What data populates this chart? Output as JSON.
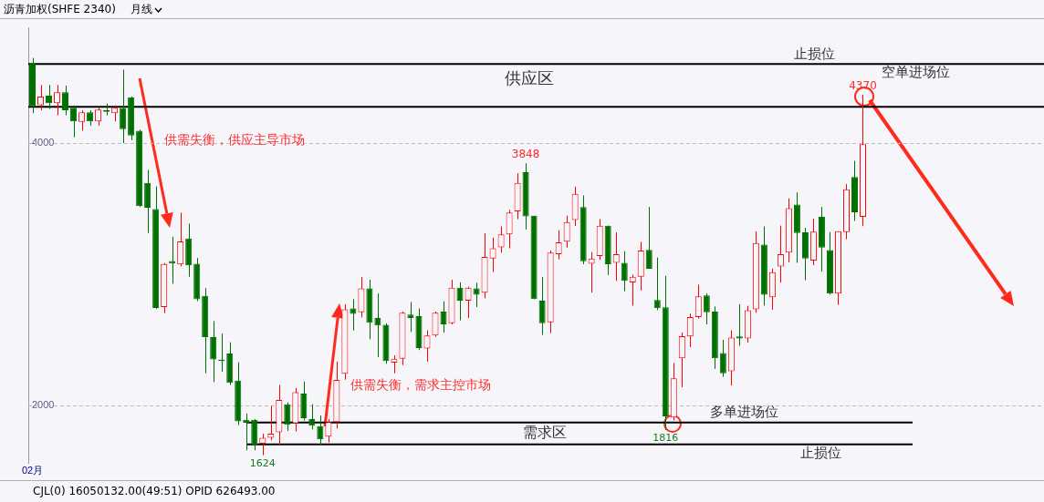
{
  "chart_data": {
    "type": "candlestick",
    "title": "沥青加权(SHFE 2340)",
    "subtitle": "月线",
    "categories": [
      "02月",
      null,
      null,
      null,
      null,
      null,
      null,
      null,
      null,
      null,
      null,
      null,
      null,
      null,
      null,
      null,
      null,
      null,
      null,
      null,
      null,
      null,
      null,
      null,
      null,
      null,
      null,
      null,
      null,
      null,
      null,
      null,
      null,
      null,
      null,
      null,
      null,
      null,
      null,
      null,
      null,
      null,
      null,
      null,
      null,
      null,
      null,
      null,
      null,
      null,
      null,
      null,
      null,
      null,
      null,
      null,
      null,
      null,
      null,
      null,
      null,
      null,
      null,
      null,
      null,
      null,
      null,
      null,
      null,
      null,
      null,
      null,
      null,
      null,
      null,
      null,
      null,
      null,
      null,
      null,
      null,
      null,
      null,
      null,
      null,
      null,
      null,
      null,
      null,
      null,
      null,
      null,
      null,
      null,
      null,
      null,
      null,
      null,
      null,
      null,
      null,
      null
    ],
    "ohlc": [
      [
        4606,
        4651,
        4230,
        4285
      ],
      [
        4290,
        4445,
        4252,
        4356
      ],
      [
        4363,
        4445,
        4263,
        4307
      ],
      [
        4307,
        4445,
        4214,
        4389
      ],
      [
        4389,
        4440,
        4214,
        4252
      ],
      [
        4272,
        4290,
        4046,
        4168
      ],
      [
        4163,
        4252,
        4097,
        4237
      ],
      [
        4237,
        4252,
        4135,
        4168
      ],
      [
        4168,
        4274,
        4135,
        4257
      ],
      [
        4252,
        4303,
        4214,
        4241
      ],
      [
        4230,
        4290,
        4168,
        4272
      ],
      [
        4270,
        4562,
        4002,
        4108
      ],
      [
        4352,
        4356,
        4024,
        4059
      ],
      [
        4097,
        4104,
        3515,
        3521
      ],
      [
        3698,
        3798,
        3317,
        3510
      ],
      [
        3499,
        3672,
        2739,
        2746
      ],
      [
        2753,
        3089,
        2706,
        3080
      ],
      [
        3103,
        3289,
        2930,
        3085
      ],
      [
        3078,
        3472,
        3063,
        3253
      ],
      [
        3275,
        3388,
        2983,
        3071
      ],
      [
        3083,
        3127,
        2797,
        2812
      ],
      [
        2837,
        2897,
        2248,
        2524
      ],
      [
        2524,
        2646,
        2181,
        2354
      ],
      [
        2352,
        2551,
        2259,
        2341
      ],
      [
        2398,
        2484,
        2159,
        2174
      ],
      [
        2192,
        2332,
        1853,
        1882
      ],
      [
        1893,
        1942,
        1661,
        1871
      ],
      [
        1893,
        1898,
        1661,
        1705
      ],
      [
        1711,
        1787,
        1624,
        1756
      ],
      [
        1756,
        2000,
        1738,
        1787
      ],
      [
        1798,
        2159,
        1705,
        2044
      ],
      [
        2011,
        2026,
        1809,
        1855
      ],
      [
        1865,
        2137,
        1805,
        2104
      ],
      [
        2093,
        2186,
        1887,
        1905
      ],
      [
        1898,
        2013,
        1820,
        1849
      ],
      [
        1845,
        1927,
        1705,
        1745
      ],
      [
        1765,
        1898,
        1721,
        1876
      ],
      [
        1876,
        2337,
        1827,
        2197
      ],
      [
        2244,
        2775,
        2199,
        2735
      ],
      [
        2742,
        2813,
        2574,
        2700
      ],
      [
        2713,
        2983,
        2673,
        2895
      ],
      [
        2895,
        2961,
        2507,
        2633
      ],
      [
        2669,
        2857,
        2370,
        2613
      ],
      [
        2618,
        2629,
        2321,
        2341
      ],
      [
        2330,
        2385,
        2248,
        2359
      ],
      [
        2359,
        2718,
        2310,
        2709
      ],
      [
        2695,
        2791,
        2563,
        2669
      ],
      [
        2684,
        2742,
        2425,
        2441
      ],
      [
        2436,
        2576,
        2337,
        2536
      ],
      [
        2536,
        2718,
        2525,
        2709
      ],
      [
        2718,
        2797,
        2558,
        2620
      ],
      [
        2629,
        2961,
        2620,
        2901
      ],
      [
        2901,
        2941,
        2651,
        2802
      ],
      [
        2802,
        2908,
        2669,
        2901
      ],
      [
        2895,
        2939,
        2753,
        2846
      ],
      [
        2862,
        3316,
        2819,
        3134
      ],
      [
        3123,
        3282,
        3019,
        3200
      ],
      [
        3207,
        3367,
        3167,
        3307
      ],
      [
        3307,
        3493,
        3200,
        3473
      ],
      [
        3482,
        3772,
        3422,
        3699
      ],
      [
        3781,
        3848,
        3344,
        3444
      ],
      [
        3449,
        3449,
        2813,
        2813
      ],
      [
        2802,
        2983,
        2540,
        2629
      ],
      [
        2636,
        3183,
        2554,
        3167
      ],
      [
        3156,
        3338,
        3116,
        3245
      ],
      [
        3251,
        3449,
        3205,
        3400
      ],
      [
        3415,
        3670,
        3371,
        3615
      ],
      [
        3515,
        3604,
        3079,
        3101
      ],
      [
        3083,
        3172,
        2862,
        3123
      ],
      [
        3141,
        3422,
        3112,
        3373
      ],
      [
        3373,
        3373,
        2997,
        3079
      ],
      [
        3090,
        3322,
        2952,
        3156
      ],
      [
        3090,
        3178,
        2873,
        2952
      ],
      [
        2941,
        3001,
        2764,
        2983
      ],
      [
        2983,
        3249,
        2879,
        3183
      ],
      [
        3189,
        3515,
        3045,
        3045
      ],
      [
        2806,
        3130,
        2729,
        2744
      ],
      [
        2751,
        2990,
        1816,
        1920
      ],
      [
        1911,
        2326,
        1889,
        2210
      ],
      [
        2363,
        2558,
        2142,
        2530
      ],
      [
        2529,
        2702,
        2447,
        2676
      ],
      [
        2676,
        2924,
        2664,
        2835
      ],
      [
        2842,
        2857,
        2620,
        2713
      ],
      [
        2718,
        2757,
        2281,
        2363
      ],
      [
        2403,
        2503,
        2221,
        2248
      ],
      [
        2264,
        2576,
        2155,
        2520
      ],
      [
        2529,
        2775,
        2458,
        2514
      ],
      [
        2514,
        2762,
        2481,
        2729
      ],
      [
        2735,
        3329,
        2709,
        3240
      ],
      [
        3229,
        3367,
        2764,
        2846
      ],
      [
        2828,
        3045,
        2731,
        3019
      ],
      [
        3061,
        3373,
        2939,
        3156
      ],
      [
        3167,
        3581,
        3094,
        3506
      ],
      [
        3533,
        3626,
        3090,
        3316
      ],
      [
        3322,
        3356,
        2957,
        3123
      ],
      [
        3107,
        3426,
        3072,
        3327
      ],
      [
        3440,
        3515,
        3023,
        3205
      ],
      [
        3187,
        3323,
        2848,
        2855
      ],
      [
        2855,
        3330,
        2769,
        3330
      ],
      [
        3323,
        3690,
        3269,
        3650
      ],
      [
        3743,
        3867,
        3409,
        3475
      ],
      [
        3440,
        4370,
        3369,
        3993
      ]
    ],
    "colors": [
      "#007000",
      "#ff0000",
      "#007000",
      "#ff0000",
      "#007000",
      "#007000",
      "#ff0000",
      "#007000",
      "#ff0000",
      "#007000",
      "#ff0000",
      "#007000",
      "#007000",
      "#007000",
      "#007000",
      "#007000",
      "#ff0000",
      "#007000",
      "#ff0000",
      "#007000",
      "#007000",
      "#007000",
      "#007000",
      "#007000",
      "#007000",
      "#007000",
      "#007000",
      "#007000",
      "#ff0000",
      "#ff0000",
      "#ff0000",
      "#007000",
      "#ff0000",
      "#007000",
      "#007000",
      "#007000",
      "#ff0000",
      "#ff0000",
      "#ff0000",
      "#007000",
      "#ff0000",
      "#007000",
      "#007000",
      "#007000",
      "#ff0000",
      "#ff0000",
      "#007000",
      "#007000",
      "#ff0000",
      "#ff0000",
      "#007000",
      "#ff0000",
      "#007000",
      "#ff0000",
      "#007000",
      "#ff0000",
      "#ff0000",
      "#ff0000",
      "#ff0000",
      "#ff0000",
      "#007000",
      "#007000",
      "#007000",
      "#ff0000",
      "#ff0000",
      "#ff0000",
      "#ff0000",
      "#007000",
      "#ff0000",
      "#ff0000",
      "#007000",
      "#ff0000",
      "#007000",
      "#ff0000",
      "#ff0000",
      "#007000",
      "#007000",
      "#007000",
      "#ff0000",
      "#ff0000",
      "#ff0000",
      "#ff0000",
      "#007000",
      "#007000",
      "#007000",
      "#ff0000",
      "#007000",
      "#ff0000",
      "#ff0000",
      "#007000",
      "#ff0000",
      "#ff0000",
      "#ff0000",
      "#007000",
      "#007000",
      "#ff0000",
      "#007000",
      "#007000",
      "#ff0000",
      "#ff0000",
      "#007000",
      "#ff0000"
    ],
    "ylim": [
      1560,
      4880
    ],
    "yticks": [
      2000,
      4000
    ],
    "grid": "y",
    "ref_lines": [
      {
        "axis": "y",
        "value": 4605,
        "label": "止损位",
        "color": "#000000"
      },
      {
        "axis": "y",
        "value": 4279,
        "label": "空单进场位",
        "color": "#000000"
      },
      {
        "axis": "y",
        "value": 1873,
        "label": "多单进场位",
        "color": "#000000"
      },
      {
        "axis": "y",
        "value": 1707,
        "label": "止损位",
        "color": "#000000"
      }
    ],
    "annotations": [
      "供需失衡，供应主导市场",
      "供需失衡，需求主控市场",
      "供应区",
      "需求区",
      {
        "text": "3848",
        "y": 3848
      },
      {
        "text": "4370",
        "y": 4370
      },
      {
        "text": "1624",
        "y": 1624
      },
      {
        "text": "1816",
        "y": 1816
      },
      "CJL(0)  16050132.00(49:51)  OPID 626493.00"
    ]
  }
}
